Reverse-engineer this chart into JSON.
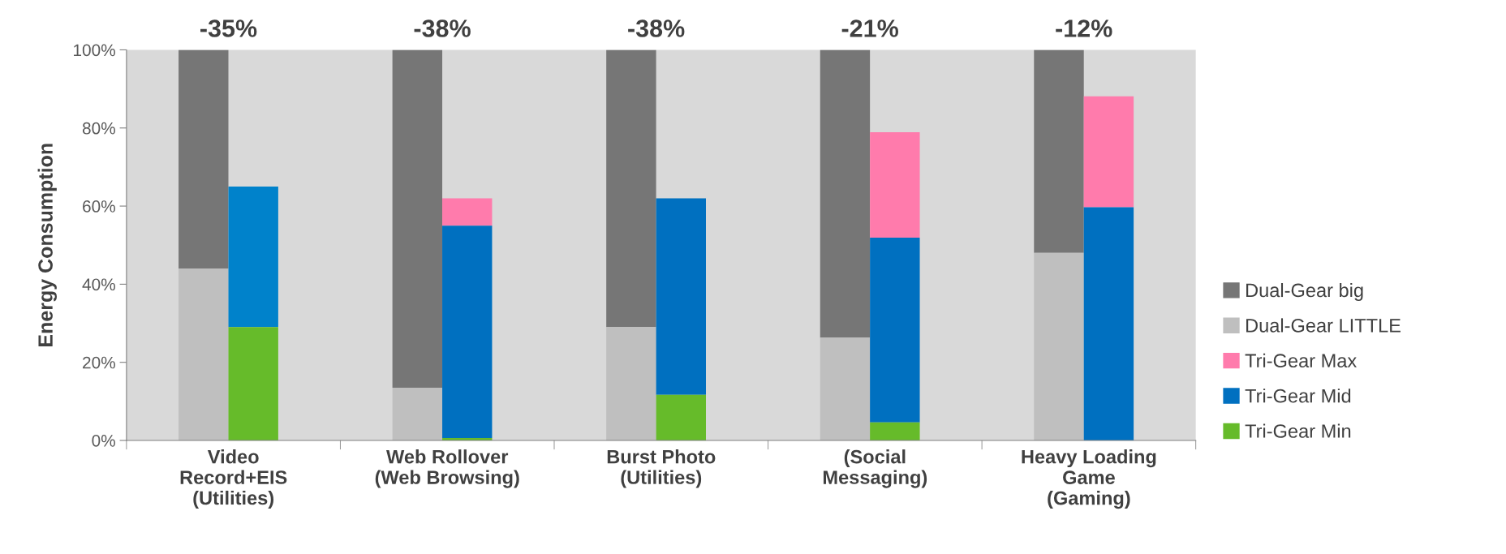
{
  "chart_data": {
    "type": "bar",
    "ylabel": "Energy Consumption",
    "categories": [
      "Video\nRecord+EIS\n(Utilities)",
      "Web Rollover\n(Web Browsing)",
      "Burst Photo\n(Utilities)",
      "(Social\nMessaging)",
      "Heavy Loading\nGame\n(Gaming)"
    ],
    "series": [
      {
        "name": "Dual-Gear big",
        "color": "#767676",
        "values": [
          56,
          86.5,
          71,
          73.7,
          52
        ],
        "base": [
          44,
          13.5,
          29,
          26.3,
          48
        ]
      },
      {
        "name": "Dual-Gear LITTLE",
        "color": "#bfbfbf",
        "values": [
          44,
          13.5,
          29,
          26.3,
          48
        ],
        "base": [
          0,
          0,
          0,
          0,
          0
        ]
      },
      {
        "name": "Tri-Gear Max",
        "color": "#ff7bac",
        "values": [
          null,
          7,
          null,
          27,
          28.4
        ],
        "base": [
          null,
          55,
          null,
          51.9,
          59.7
        ]
      },
      {
        "name": "Tri-Gear Mid",
        "color": "#0070c0",
        "colors": [
          "#0082cb",
          "#0070c0",
          "#0070c0",
          "#0070c0",
          "#0070c0"
        ],
        "values": [
          36,
          54.4,
          50.3,
          47.3,
          59.7
        ],
        "base": [
          29,
          0.6,
          11.7,
          4.6,
          0
        ]
      },
      {
        "name": "Tri-Gear Min",
        "color": "#66bb2a",
        "values": [
          29,
          0.6,
          11.7,
          4.6,
          null
        ],
        "base": [
          0,
          0,
          0,
          0,
          null
        ]
      }
    ],
    "ylim": [
      0,
      100
    ],
    "yticks": [
      {
        "value": 0,
        "label": "0%"
      },
      {
        "value": 20,
        "label": "20%"
      },
      {
        "value": 40,
        "label": "40%"
      },
      {
        "value": 60,
        "label": "60%"
      },
      {
        "value": 80,
        "label": "80%"
      },
      {
        "value": 100,
        "label": "100%"
      }
    ],
    "annotations": [
      "-35%",
      "-38%",
      "-38%",
      "-21%",
      "-12%"
    ],
    "grid": false,
    "legend": "right"
  }
}
